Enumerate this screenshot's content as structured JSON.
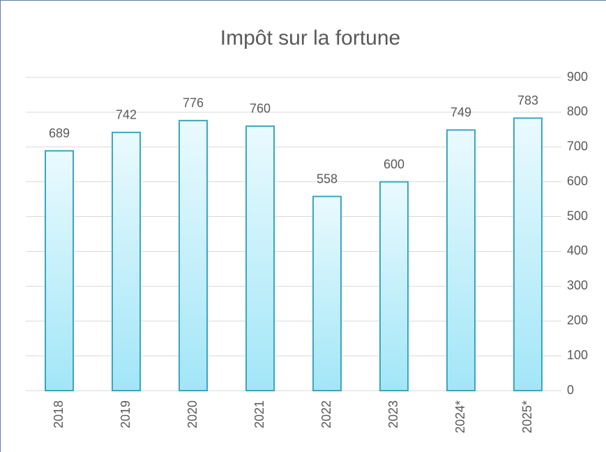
{
  "chart_data": {
    "type": "bar",
    "title": "Impôt sur la fortune",
    "categories": [
      "2018",
      "2019",
      "2020",
      "2021",
      "2022",
      "2023",
      "2024*",
      "2025*"
    ],
    "values": [
      689,
      742,
      776,
      760,
      558,
      600,
      749,
      783
    ],
    "color": "#3aa6bf",
    "ylim": [
      0,
      900
    ],
    "yticks": [
      0,
      100,
      200,
      300,
      400,
      500,
      600,
      700,
      800,
      900
    ],
    "grid": true
  }
}
